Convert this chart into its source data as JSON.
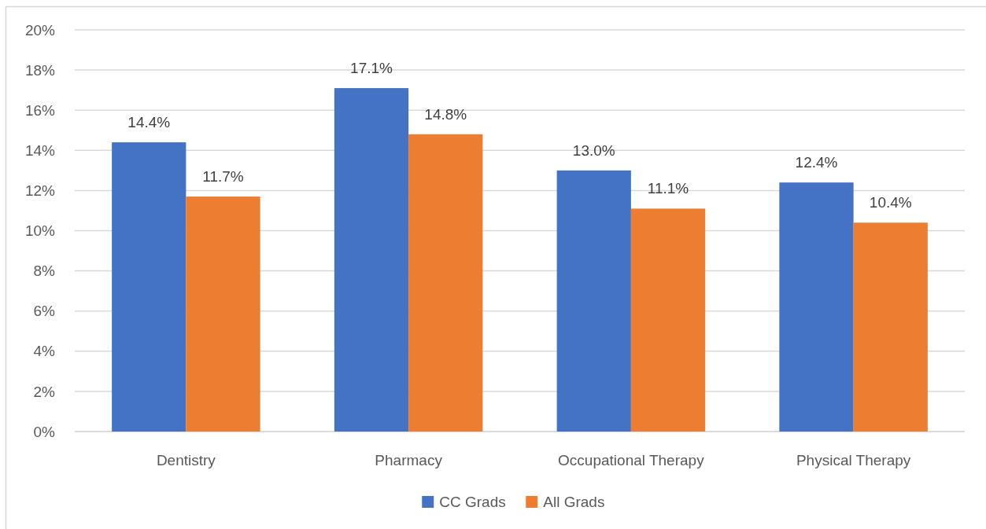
{
  "chart_data": {
    "type": "bar",
    "categories": [
      "Dentistry",
      "Pharmacy",
      "Occupational Therapy",
      "Physical Therapy"
    ],
    "series": [
      {
        "name": "CC Grads",
        "color": "#4472c4",
        "values": [
          14.4,
          17.1,
          13.0,
          12.4
        ],
        "value_labels": [
          "14.4%",
          "17.1%",
          "13.0%",
          "12.4%"
        ]
      },
      {
        "name": "All Grads",
        "color": "#ed7d31",
        "values": [
          11.7,
          14.8,
          11.1,
          10.4
        ],
        "value_labels": [
          "11.7%",
          "14.8%",
          "11.1%",
          "10.4%"
        ]
      }
    ],
    "ylim": [
      0,
      20
    ],
    "yticks": [
      {
        "value": 0,
        "label": "0%"
      },
      {
        "value": 2,
        "label": "2%"
      },
      {
        "value": 4,
        "label": "4%"
      },
      {
        "value": 6,
        "label": "6%"
      },
      {
        "value": 8,
        "label": "8%"
      },
      {
        "value": 10,
        "label": "10%"
      },
      {
        "value": 12,
        "label": "12%"
      },
      {
        "value": 14,
        "label": "14%"
      },
      {
        "value": 16,
        "label": "16%"
      },
      {
        "value": 18,
        "label": "18%"
      },
      {
        "value": 20,
        "label": "20%"
      }
    ],
    "grid": "y",
    "legend": "bottom"
  }
}
